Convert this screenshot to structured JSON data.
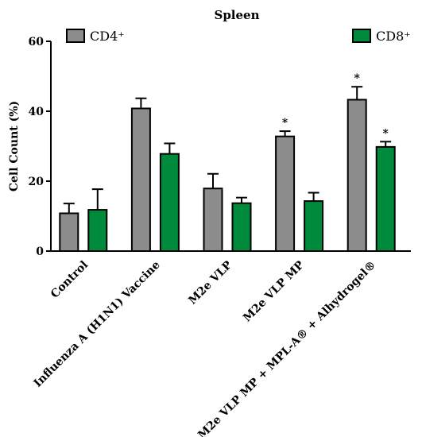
{
  "chart_data": {
    "type": "bar",
    "title": "Spleen",
    "xlabel": "",
    "ylabel": "Cell Count (%)",
    "ylim": [
      0,
      60
    ],
    "yticks": [
      "0",
      "20",
      "40",
      "60"
    ],
    "categories": [
      "Control",
      "Influenza A (H1N1) Vaccine",
      "M2e VLP",
      "M2e VLP MP",
      "M2e VLP MP + MPL-A® + Alhydrogel®"
    ],
    "series": [
      {
        "name": "CD4⁺",
        "color": "#8c8c8c",
        "values": [
          10.8,
          40.8,
          17.9,
          32.8,
          43.3
        ],
        "errors": [
          2.8,
          2.9,
          4.2,
          1.5,
          3.7
        ],
        "significance": [
          "",
          "",
          "",
          "*",
          "*"
        ]
      },
      {
        "name": "CD8⁺",
        "color": "#008b3c",
        "values": [
          11.8,
          27.8,
          13.7,
          14.3,
          29.8
        ],
        "errors": [
          5.9,
          3.0,
          1.6,
          2.4,
          1.5
        ],
        "significance": [
          "",
          "",
          "",
          "",
          "*"
        ]
      }
    ],
    "legend": [
      "top-left",
      "top-right"
    ],
    "grid": false
  }
}
